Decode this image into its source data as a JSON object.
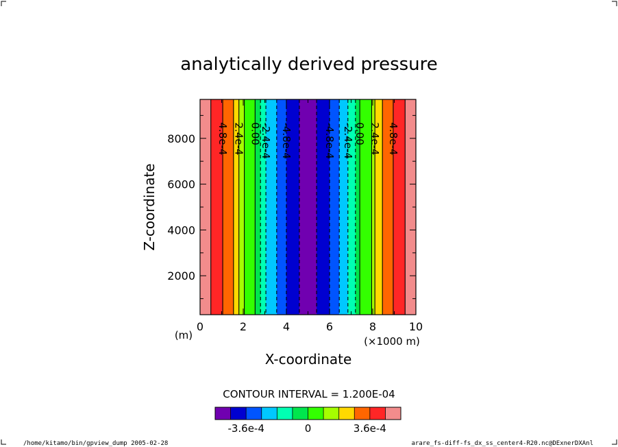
{
  "chart_data": {
    "type": "heatmap",
    "title": "analytically derived pressure",
    "xlabel": "X-coordinate",
    "ylabel": "Z-coordinate",
    "x_unit_left": "(m)",
    "x_unit_right": "(×1000 m)",
    "xlim": [
      0,
      10
    ],
    "ylim": [
      300,
      9700
    ],
    "x_ticks": [
      0,
      2,
      4,
      6,
      8,
      10
    ],
    "x_tick_labels": [
      "0",
      "2",
      "4",
      "6",
      "8",
      "10"
    ],
    "y_ticks": [
      2000,
      4000,
      6000,
      8000
    ],
    "y_tick_labels": [
      "2000",
      "4000",
      "6000",
      "8000"
    ],
    "contour_interval_text": "CONTOUR INTERVAL = 1.200E-04",
    "contour_levels": [
      -0.00048,
      -0.00036,
      -0.00024,
      -0.00012,
      0,
      0.00012,
      0.00024,
      0.00036,
      0.00048
    ],
    "contour_labels": [
      {
        "x": 1.05,
        "text": "4.8e-4"
      },
      {
        "x": 1.8,
        "text": "2.4e-4"
      },
      {
        "x": 2.55,
        "text": "0.00"
      },
      {
        "x": 3.05,
        "text": "-2.4e-4"
      },
      {
        "x": 4.0,
        "text": "-4.8e-4"
      },
      {
        "x": 6.0,
        "text": "-4.8e-4"
      },
      {
        "x": 6.85,
        "text": "-2.4e-4"
      },
      {
        "x": 7.4,
        "text": "0.00"
      },
      {
        "x": 8.1,
        "text": "2.4e-4"
      },
      {
        "x": 8.95,
        "text": "4.8e-4"
      }
    ],
    "bands": [
      {
        "x0": 0.0,
        "x1": 0.5,
        "color": "#f28c8c"
      },
      {
        "x0": 0.5,
        "x1": 1.05,
        "color": "#ff2626"
      },
      {
        "x0": 1.05,
        "x1": 1.55,
        "color": "#ff6600"
      },
      {
        "x0": 1.55,
        "x1": 1.8,
        "color": "#ffd900"
      },
      {
        "x0": 1.8,
        "x1": 2.05,
        "color": "#a6ff00"
      },
      {
        "x0": 2.05,
        "x1": 2.55,
        "color": "#33ff00"
      },
      {
        "x0": 2.55,
        "x1": 2.8,
        "color": "#00e64d"
      },
      {
        "x0": 2.8,
        "x1": 3.05,
        "color": "#00ffb3"
      },
      {
        "x0": 3.05,
        "x1": 3.55,
        "color": "#00c8ff"
      },
      {
        "x0": 3.55,
        "x1": 4.0,
        "color": "#0055ff"
      },
      {
        "x0": 4.0,
        "x1": 4.6,
        "color": "#0000d0"
      },
      {
        "x0": 4.6,
        "x1": 5.4,
        "color": "#7000b0"
      },
      {
        "x0": 5.4,
        "x1": 6.0,
        "color": "#0000d0"
      },
      {
        "x0": 6.0,
        "x1": 6.45,
        "color": "#0055ff"
      },
      {
        "x0": 6.45,
        "x1": 6.85,
        "color": "#00c8ff"
      },
      {
        "x0": 6.85,
        "x1": 7.2,
        "color": "#00ffb3"
      },
      {
        "x0": 7.2,
        "x1": 7.4,
        "color": "#00e64d"
      },
      {
        "x0": 7.4,
        "x1": 7.95,
        "color": "#33ff00"
      },
      {
        "x0": 7.95,
        "x1": 8.1,
        "color": "#a6ff00"
      },
      {
        "x0": 8.1,
        "x1": 8.45,
        "color": "#ffd900"
      },
      {
        "x0": 8.45,
        "x1": 8.95,
        "color": "#ff6600"
      },
      {
        "x0": 8.95,
        "x1": 9.5,
        "color": "#ff2626"
      },
      {
        "x0": 9.5,
        "x1": 10.0,
        "color": "#f28c8c"
      }
    ],
    "contours": [
      {
        "x": 0.5,
        "dashed": false
      },
      {
        "x": 1.05,
        "dashed": false
      },
      {
        "x": 1.55,
        "dashed": false
      },
      {
        "x": 1.8,
        "dashed": false
      },
      {
        "x": 2.05,
        "dashed": false
      },
      {
        "x": 2.55,
        "dashed": false
      },
      {
        "x": 2.8,
        "dashed": true
      },
      {
        "x": 3.05,
        "dashed": true
      },
      {
        "x": 3.55,
        "dashed": true
      },
      {
        "x": 4.0,
        "dashed": true
      },
      {
        "x": 4.6,
        "dashed": true
      },
      {
        "x": 5.4,
        "dashed": true
      },
      {
        "x": 6.0,
        "dashed": true
      },
      {
        "x": 6.45,
        "dashed": true
      },
      {
        "x": 6.85,
        "dashed": true
      },
      {
        "x": 7.2,
        "dashed": true
      },
      {
        "x": 7.4,
        "dashed": false
      },
      {
        "x": 7.95,
        "dashed": false
      },
      {
        "x": 8.1,
        "dashed": false
      },
      {
        "x": 8.45,
        "dashed": false
      },
      {
        "x": 8.95,
        "dashed": false
      },
      {
        "x": 9.5,
        "dashed": false
      }
    ],
    "colorbar": {
      "colors": [
        "#7000b0",
        "#0000d0",
        "#0055ff",
        "#00c8ff",
        "#00ffb3",
        "#00e64d",
        "#33ff00",
        "#a6ff00",
        "#ffd900",
        "#ff6600",
        "#ff2626",
        "#f28c8c"
      ],
      "tick_labels": [
        "-3.6e-4",
        "0",
        "3.6e-4"
      ],
      "tick_positions": [
        2,
        6,
        10
      ]
    },
    "grid": false,
    "legend": "colorbar-bottom"
  },
  "footer": {
    "left": "/home/kitamo/bin/gpview_dump  2005-02-28",
    "right": "arare_fs-diff-fs_dx_ss_center4-R20.nc@DExnerDXAnl"
  }
}
